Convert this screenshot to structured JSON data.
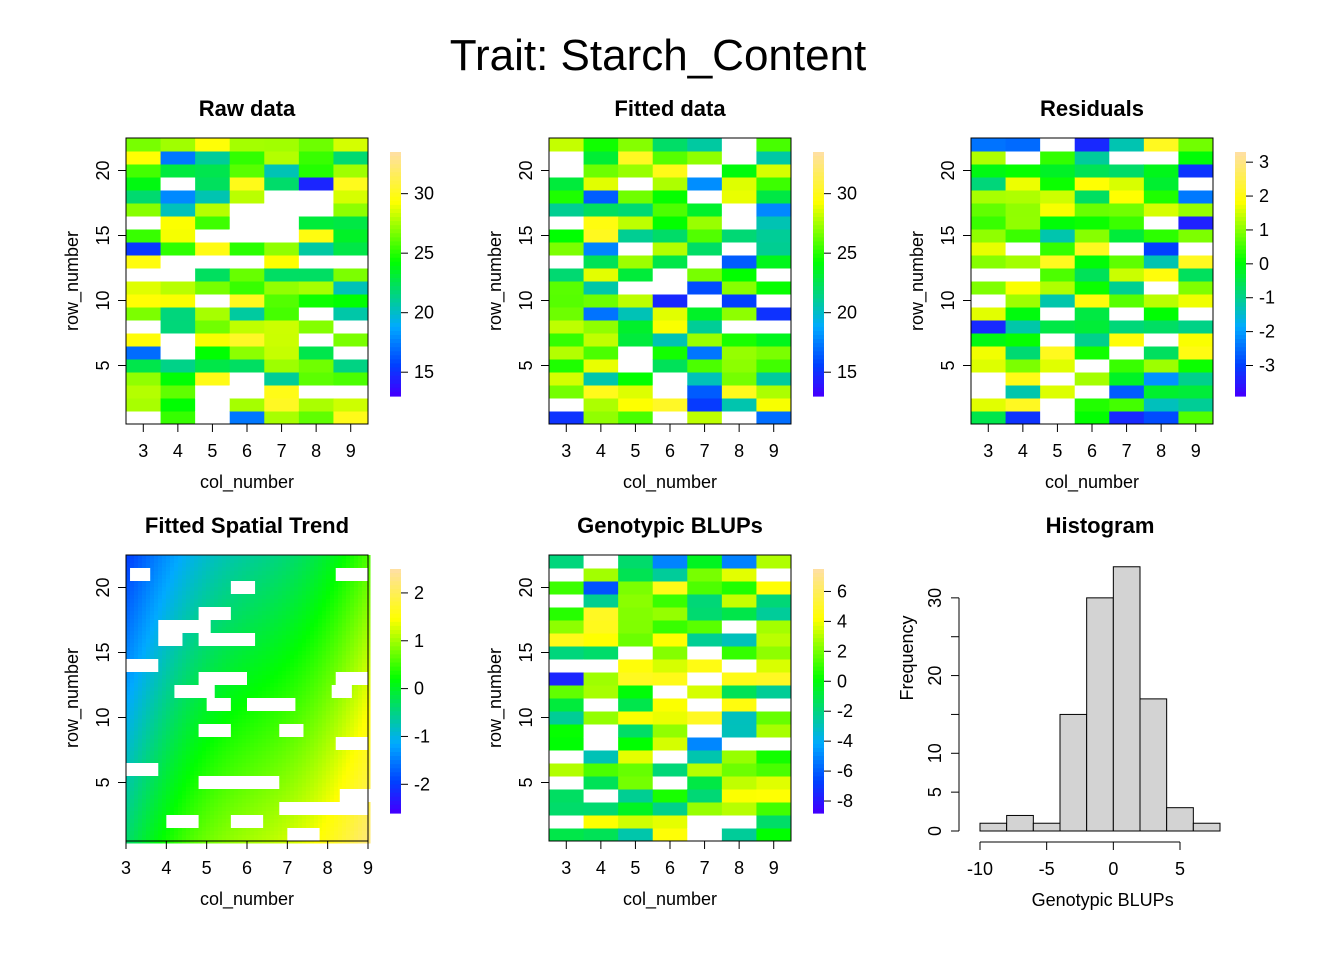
{
  "figure": {
    "title": "Trait: Starch_Content"
  },
  "chart_data": [
    {
      "type": "heatmap",
      "title": "Raw data",
      "xlabel": "col_number",
      "ylabel": "row_number",
      "x": [
        3,
        4,
        5,
        6,
        7,
        8,
        9
      ],
      "rows": [
        1,
        22
      ],
      "xticks": [
        3,
        4,
        5,
        6,
        7,
        8,
        9
      ],
      "yticks": [
        5,
        10,
        15,
        20
      ],
      "colorbar": {
        "range": [
          13,
          33.5
        ],
        "ticks": [
          15,
          20,
          25,
          30
        ]
      },
      "colors": [
        "#4000ff",
        "#0040ff",
        "#00aaff",
        "#00ff00",
        "#ffff00",
        "#ffe0a0"
      ]
    },
    {
      "type": "heatmap",
      "title": "Fitted data",
      "xlabel": "col_number",
      "ylabel": "row_number",
      "x": [
        3,
        4,
        5,
        6,
        7,
        8,
        9
      ],
      "rows": [
        1,
        22
      ],
      "xticks": [
        3,
        4,
        5,
        6,
        7,
        8,
        9
      ],
      "yticks": [
        5,
        10,
        15,
        20
      ],
      "colorbar": {
        "range": [
          13,
          33.5
        ],
        "ticks": [
          15,
          20,
          25,
          30
        ]
      },
      "colors": [
        "#4000ff",
        "#0040ff",
        "#00aaff",
        "#00ff00",
        "#ffff00",
        "#ffe0a0"
      ]
    },
    {
      "type": "heatmap",
      "title": "Residuals",
      "xlabel": "col_number",
      "ylabel": "row_number",
      "x": [
        3,
        4,
        5,
        6,
        7,
        8,
        9
      ],
      "rows": [
        1,
        22
      ],
      "xticks": [
        3,
        4,
        5,
        6,
        7,
        8,
        9
      ],
      "yticks": [
        5,
        10,
        15,
        20
      ],
      "colorbar": {
        "range": [
          -3.9,
          3.3
        ],
        "ticks": [
          -3,
          -2,
          -1,
          0,
          1,
          2,
          3
        ]
      },
      "colors": [
        "#4000ff",
        "#0040ff",
        "#00aaff",
        "#00ff00",
        "#ffff00",
        "#ffe0a0"
      ]
    },
    {
      "type": "heatmap",
      "title": "Fitted Spatial Trend",
      "xlabel": "col_number",
      "ylabel": "row_number",
      "x": [
        3,
        9
      ],
      "rows": [
        1,
        22
      ],
      "xticks": [
        3,
        4,
        5,
        6,
        7,
        8,
        9
      ],
      "yticks": [
        5,
        10,
        15,
        20
      ],
      "colorbar": {
        "range": [
          -2.6,
          2.5
        ],
        "ticks": [
          -2,
          -1,
          0,
          1,
          2
        ]
      },
      "colors": [
        "#4000ff",
        "#0040ff",
        "#00aaff",
        "#00ff00",
        "#ffff00",
        "#ffe0a0"
      ]
    },
    {
      "type": "heatmap",
      "title": "Genotypic BLUPs",
      "xlabel": "col_number",
      "ylabel": "row_number",
      "x": [
        3,
        4,
        5,
        6,
        7,
        8,
        9
      ],
      "rows": [
        1,
        22
      ],
      "xticks": [
        3,
        4,
        5,
        6,
        7,
        8,
        9
      ],
      "yticks": [
        5,
        10,
        15,
        20
      ],
      "colorbar": {
        "range": [
          -8.8,
          7.5
        ],
        "ticks": [
          -8,
          -6,
          -4,
          -2,
          0,
          2,
          4,
          6
        ]
      },
      "colors": [
        "#4000ff",
        "#0040ff",
        "#00aaff",
        "#00ff00",
        "#ffff00",
        "#ffe0a0"
      ]
    },
    {
      "type": "bar",
      "title": "Histogram",
      "xlabel": "Genotypic BLUPs",
      "ylabel": "Frequency",
      "bins": [
        [
          -10,
          -8
        ],
        [
          -8,
          -6
        ],
        [
          -6,
          -4
        ],
        [
          -4,
          -2
        ],
        [
          -2,
          0
        ],
        [
          0,
          2
        ],
        [
          2,
          4
        ],
        [
          4,
          6
        ],
        [
          6,
          8
        ]
      ],
      "values": [
        1,
        2,
        1,
        15,
        30,
        34,
        17,
        3,
        1
      ],
      "xlim": [
        -10,
        8
      ],
      "ylim": [
        0,
        35
      ],
      "xticks": [
        -10,
        -5,
        0,
        5
      ],
      "yticks": [
        0,
        5,
        10,
        20,
        30
      ],
      "bar_color": "#d3d3d3"
    }
  ]
}
